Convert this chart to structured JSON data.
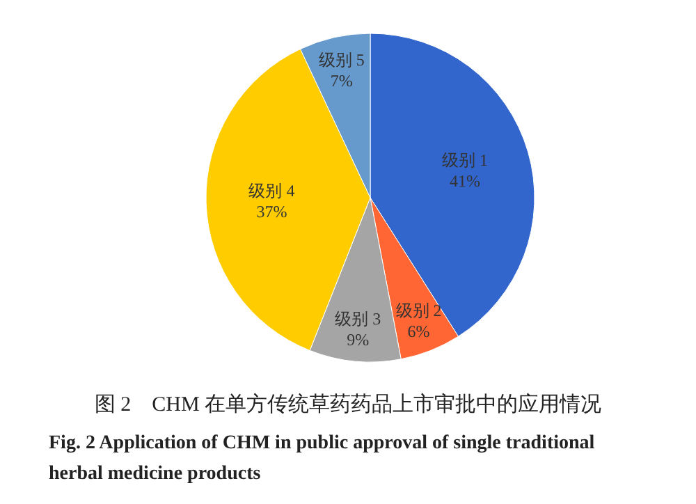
{
  "chart_data": {
    "type": "pie",
    "categories": [
      "级别 1",
      "级别 2",
      "级别 3",
      "级别 4",
      "级别 5"
    ],
    "values": [
      41,
      6,
      9,
      37,
      7
    ],
    "colors": [
      "#3366cc",
      "#ff6633",
      "#a5a5a5",
      "#ffcc00",
      "#6699cc"
    ],
    "value_labels": [
      "41%",
      "6%",
      "9%",
      "37%",
      "7%"
    ],
    "legend": false,
    "annotations": [
      "图 2　CHM 在单方传统草药药品上市审批中的应用情况",
      "Fig. 2  Application of CHM in public approval of single traditional herbal medicine products"
    ]
  }
}
